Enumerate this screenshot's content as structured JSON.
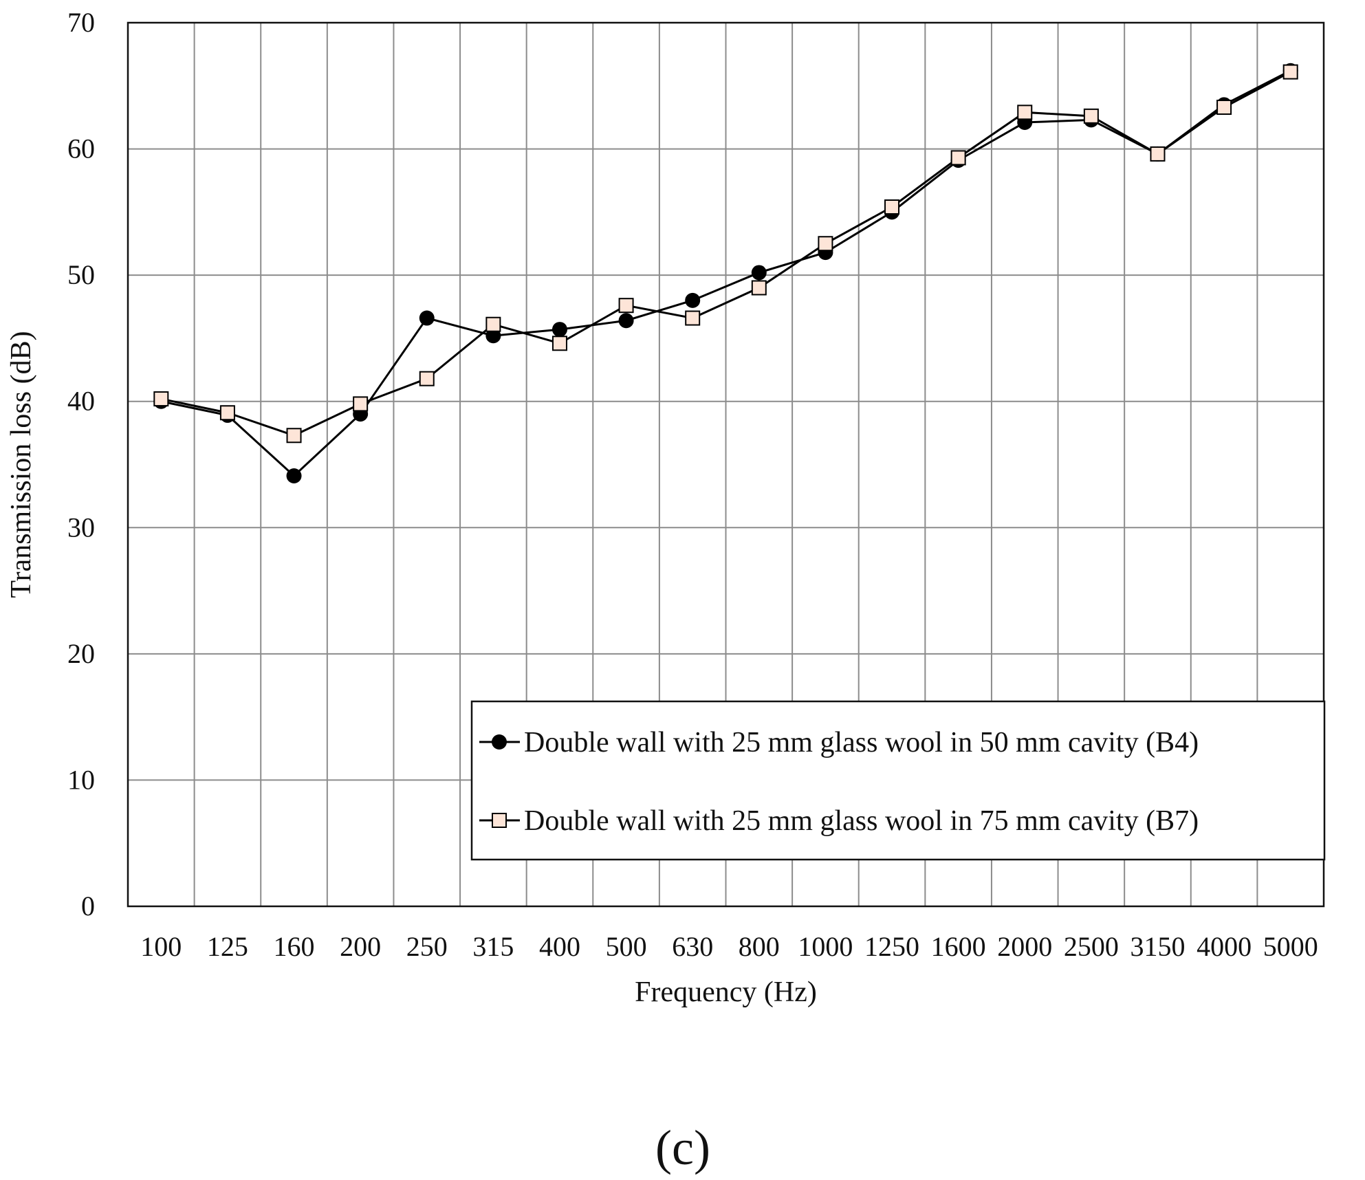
{
  "chart_data": {
    "type": "line",
    "categories": [
      "100",
      "125",
      "160",
      "200",
      "250",
      "315",
      "400",
      "500",
      "630",
      "800",
      "1000",
      "1250",
      "1600",
      "2000",
      "2500",
      "3150",
      "4000",
      "5000"
    ],
    "tick_labels": [
      "100",
      "125",
      "160",
      "200",
      "250",
      "315",
      "400",
      "500",
      "630",
      "800",
      "1000",
      "1250",
      "1600",
      "2000",
      "2500",
      "3150",
      "4000",
      "5000"
    ],
    "xlabel": "Frequency  (Hz)",
    "ylabel": "Transmission  loss  (dB)",
    "ylim": [
      0,
      70
    ],
    "yticks": [
      0,
      10,
      20,
      30,
      40,
      50,
      60,
      70
    ],
    "grid": true,
    "legend_position": "bottom-right",
    "series": [
      {
        "name": "Double wall with 25 mm glass wool in 50 mm cavity (B4)",
        "marker": "filled-circle",
        "color": "#000000",
        "values": [
          40.0,
          38.9,
          34.1,
          39.0,
          46.6,
          45.2,
          45.7,
          46.4,
          48.0,
          50.2,
          51.8,
          55.0,
          59.1,
          62.1,
          62.3,
          59.6,
          63.5,
          66.2
        ]
      },
      {
        "name": "Double wall with 25 mm glass wool in 75 mm cavity (B7)",
        "marker": "open-square",
        "color": "#fde5d8",
        "values": [
          40.2,
          39.1,
          37.3,
          39.8,
          41.8,
          46.1,
          44.6,
          47.6,
          46.6,
          49.0,
          52.5,
          55.4,
          59.3,
          62.9,
          62.6,
          59.6,
          63.3,
          66.1
        ]
      }
    ]
  },
  "caption": "(c)"
}
